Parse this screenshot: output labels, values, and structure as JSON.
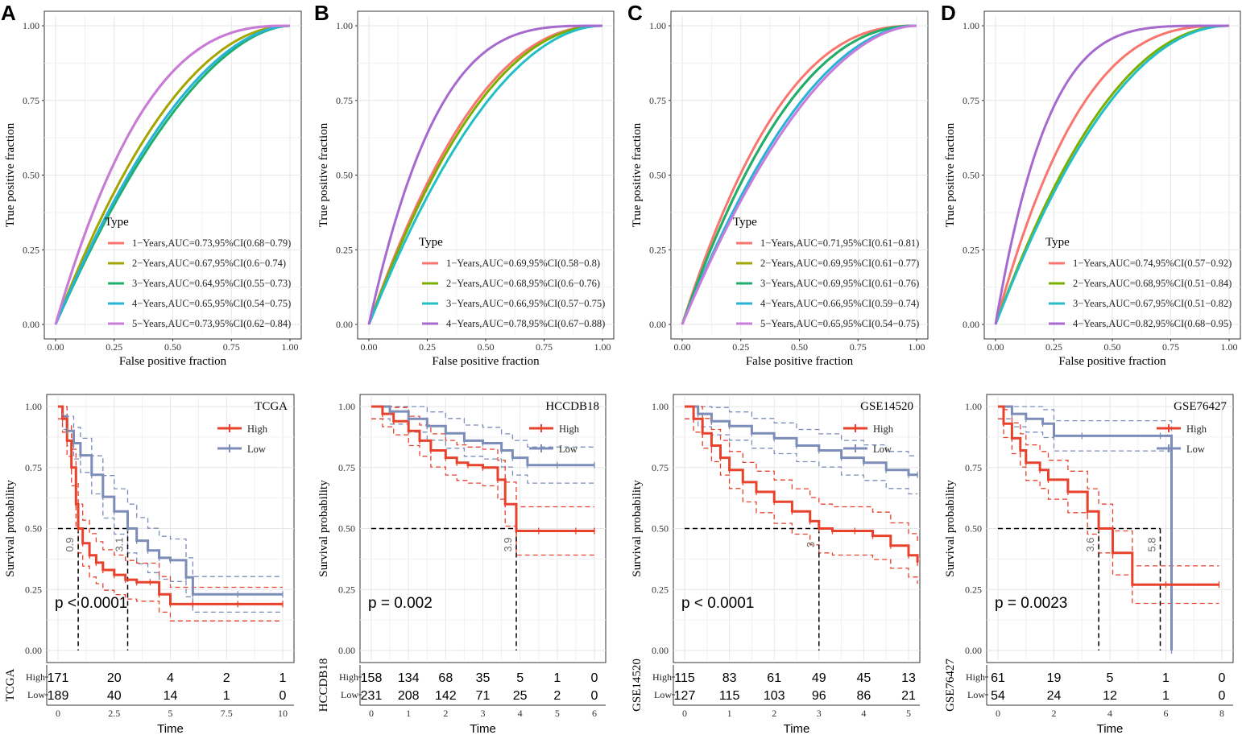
{
  "colors": {
    "roc": [
      "#F8766D",
      "#A3A500",
      "#1FAE6B",
      "#26B3D8",
      "#C77CDA"
    ],
    "roc_d": [
      "#F8766D",
      "#7CAE00",
      "#23BFC4",
      "#A66ACF"
    ],
    "high": "#E8412C",
    "low": "#7B8DB8"
  },
  "chart_data": [
    {
      "type": "line",
      "panel_label": "A",
      "xlabel": "False positive fraction",
      "ylabel": "True positive fraction",
      "xlim": [
        0,
        1
      ],
      "ylim": [
        0,
        1
      ],
      "x_ticks": [
        "0.00",
        "0.25",
        "0.50",
        "0.75",
        "1.00"
      ],
      "y_ticks": [
        "0.00",
        "0.25",
        "0.50",
        "0.75",
        "1.00"
      ],
      "legend_title": "Type",
      "series": [
        {
          "name": "1−Years,AUC=0.73,95%CI(0.68−0.79)",
          "auc": 0.73
        },
        {
          "name": "2−Years,AUC=0.67,95%CI(0.6−0.74)",
          "auc": 0.67
        },
        {
          "name": "3−Years,AUC=0.64,95%CI(0.55−0.73)",
          "auc": 0.64
        },
        {
          "name": "4−Years,AUC=0.65,95%CI(0.54−0.75)",
          "auc": 0.65
        },
        {
          "name": "5−Years,AUC=0.73,95%CI(0.62−0.84)",
          "auc": 0.73
        }
      ]
    },
    {
      "type": "line",
      "panel_label": "B",
      "xlabel": "False positive fraction",
      "ylabel": "True positive fraction",
      "xlim": [
        0,
        1
      ],
      "ylim": [
        0,
        1
      ],
      "x_ticks": [
        "0.00",
        "0.25",
        "0.50",
        "0.75",
        "1.00"
      ],
      "y_ticks": [
        "0.00",
        "0.25",
        "0.50",
        "0.75",
        "1.00"
      ],
      "legend_title": "Type",
      "series": [
        {
          "name": "1−Years,AUC=0.69,95%CI(0.58−0.8)",
          "auc": 0.69
        },
        {
          "name": "2−Years,AUC=0.68,95%CI(0.6−0.76)",
          "auc": 0.68
        },
        {
          "name": "3−Years,AUC=0.66,95%CI(0.57−0.75)",
          "auc": 0.66
        },
        {
          "name": "4−Years,AUC=0.78,95%CI(0.67−0.88)",
          "auc": 0.78
        }
      ]
    },
    {
      "type": "line",
      "panel_label": "C",
      "xlabel": "False positive fraction",
      "ylabel": "True positive fraction",
      "xlim": [
        0,
        1
      ],
      "ylim": [
        0,
        1
      ],
      "x_ticks": [
        "0.00",
        "0.25",
        "0.50",
        "0.75",
        "1.00"
      ],
      "y_ticks": [
        "0.00",
        "0.25",
        "0.50",
        "0.75",
        "1.00"
      ],
      "legend_title": "Type",
      "series": [
        {
          "name": "1−Years,AUC=0.71,95%CI(0.61−0.81)",
          "auc": 0.71
        },
        {
          "name": "2−Years,AUC=0.69,95%CI(0.61−0.77)",
          "auc": 0.69
        },
        {
          "name": "3−Years,AUC=0.69,95%CI(0.61−0.76)",
          "auc": 0.69
        },
        {
          "name": "4−Years,AUC=0.66,95%CI(0.59−0.74)",
          "auc": 0.66
        },
        {
          "name": "5−Years,AUC=0.65,95%CI(0.54−0.75)",
          "auc": 0.65
        }
      ]
    },
    {
      "type": "line",
      "panel_label": "D",
      "xlabel": "False positive fraction",
      "ylabel": "True positive fraction",
      "xlim": [
        0,
        1
      ],
      "ylim": [
        0,
        1
      ],
      "x_ticks": [
        "0.00",
        "0.25",
        "0.50",
        "0.75",
        "1.00"
      ],
      "y_ticks": [
        "0.00",
        "0.25",
        "0.50",
        "0.75",
        "1.00"
      ],
      "legend_title": "Type",
      "series": [
        {
          "name": "1−Years,AUC=0.74,95%CI(0.57−0.92)",
          "auc": 0.74
        },
        {
          "name": "2−Years,AUC=0.68,95%CI(0.51−0.84)",
          "auc": 0.68
        },
        {
          "name": "3−Years,AUC=0.67,95%CI(0.51−0.82)",
          "auc": 0.67
        },
        {
          "name": "4−Years,AUC=0.82,95%CI(0.68−0.95)",
          "auc": 0.82
        }
      ]
    },
    {
      "type": "line",
      "subtype": "kaplan-meier",
      "title": "TCGA",
      "xlabel": "Time",
      "ylabel": "Survival probability",
      "xlim": [
        0,
        10
      ],
      "ylim": [
        0,
        1
      ],
      "x_ticks": [
        "0",
        "2.5",
        "5",
        "7.5",
        "10"
      ],
      "y_ticks": [
        "0.00",
        "0.25",
        "0.50",
        "0.75",
        "1.00"
      ],
      "legend": [
        "High",
        "Low"
      ],
      "pvalue": "p < 0.0001",
      "median_labels": [
        "0.9",
        "3.1"
      ],
      "medians": [
        0.9,
        3.1
      ],
      "high": {
        "x": [
          0,
          0.2,
          0.4,
          0.6,
          0.8,
          0.9,
          1.1,
          1.4,
          1.7,
          2.0,
          2.5,
          3.0,
          3.5,
          4.1,
          4.5,
          5.0,
          6.0,
          8.0,
          10.0
        ],
        "y": [
          1,
          0.95,
          0.86,
          0.75,
          0.6,
          0.5,
          0.44,
          0.39,
          0.36,
          0.33,
          0.31,
          0.29,
          0.28,
          0.28,
          0.23,
          0.19,
          0.19,
          0.19,
          0.19
        ]
      },
      "low": {
        "x": [
          0,
          0.2,
          0.4,
          0.7,
          1.0,
          1.5,
          2.0,
          2.5,
          3.1,
          3.5,
          4.0,
          4.5,
          5.0,
          5.7,
          6.0,
          8.0,
          10.0
        ],
        "y": [
          1,
          0.96,
          0.9,
          0.85,
          0.8,
          0.72,
          0.63,
          0.57,
          0.5,
          0.45,
          0.41,
          0.38,
          0.37,
          0.3,
          0.23,
          0.23,
          0.23
        ]
      },
      "risk_table": {
        "label": "TCGA",
        "times": [
          "0",
          "2.5",
          "5",
          "7.5",
          "10"
        ],
        "High": [
          "171",
          "20",
          "4",
          "2",
          "1"
        ],
        "Low": [
          "189",
          "40",
          "14",
          "1",
          "0"
        ]
      }
    },
    {
      "type": "line",
      "subtype": "kaplan-meier",
      "title": "HCCDB18",
      "xlabel": "Time",
      "ylabel": "Survival probability",
      "xlim": [
        0,
        6
      ],
      "ylim": [
        0,
        1
      ],
      "x_ticks": [
        "0",
        "1",
        "2",
        "3",
        "4",
        "5",
        "6"
      ],
      "y_ticks": [
        "0.00",
        "0.25",
        "0.50",
        "0.75",
        "1.00"
      ],
      "legend": [
        "High",
        "Low"
      ],
      "pvalue": "p = 0.002",
      "median_labels": [
        "3.9"
      ],
      "medians": [
        3.9
      ],
      "high": {
        "x": [
          0,
          0.3,
          0.6,
          1.0,
          1.3,
          1.6,
          2.0,
          2.3,
          2.6,
          3.0,
          3.4,
          3.6,
          3.9,
          4.5,
          5.5,
          6.0
        ],
        "y": [
          1,
          0.97,
          0.94,
          0.9,
          0.86,
          0.82,
          0.79,
          0.77,
          0.76,
          0.75,
          0.7,
          0.6,
          0.49,
          0.49,
          0.49,
          0.49
        ]
      },
      "low": {
        "x": [
          0,
          0.5,
          1.0,
          1.5,
          2.0,
          2.5,
          3.0,
          3.5,
          3.8,
          4.2,
          5.0,
          6.0
        ],
        "y": [
          1,
          0.98,
          0.95,
          0.92,
          0.89,
          0.86,
          0.85,
          0.82,
          0.79,
          0.76,
          0.76,
          0.76
        ]
      },
      "risk_table": {
        "label": "HCCDB18",
        "times": [
          "0",
          "1",
          "2",
          "3",
          "4",
          "5",
          "6"
        ],
        "High": [
          "158",
          "134",
          "68",
          "35",
          "5",
          "1",
          "0"
        ],
        "Low": [
          "231",
          "208",
          "142",
          "71",
          "25",
          "2",
          "0"
        ]
      }
    },
    {
      "type": "line",
      "subtype": "kaplan-meier",
      "title": "GSE14520",
      "xlabel": "Time",
      "ylabel": "Survival probability",
      "xlim": [
        0,
        5
      ],
      "ylim": [
        0,
        1
      ],
      "x_ticks": [
        "0",
        "1",
        "2",
        "3",
        "4",
        "5"
      ],
      "y_ticks": [
        "0.00",
        "0.25",
        "0.50",
        "0.75",
        "1.00"
      ],
      "legend": [
        "High",
        "Low"
      ],
      "pvalue": "p < 0.0001",
      "median_labels": [
        "3"
      ],
      "medians": [
        3.0
      ],
      "high": {
        "x": [
          0,
          0.2,
          0.4,
          0.6,
          0.8,
          1.0,
          1.3,
          1.6,
          2.0,
          2.4,
          2.8,
          3.0,
          3.3,
          3.8,
          4.2,
          4.6,
          5.0,
          5.2
        ],
        "y": [
          1,
          0.95,
          0.89,
          0.84,
          0.79,
          0.74,
          0.69,
          0.65,
          0.61,
          0.57,
          0.53,
          0.5,
          0.49,
          0.49,
          0.47,
          0.43,
          0.39,
          0.36
        ]
      },
      "low": {
        "x": [
          0,
          0.3,
          0.6,
          1.0,
          1.5,
          2.0,
          2.5,
          3.0,
          3.5,
          4.0,
          4.5,
          5.0,
          5.2
        ],
        "y": [
          1,
          0.97,
          0.94,
          0.92,
          0.89,
          0.87,
          0.84,
          0.82,
          0.79,
          0.77,
          0.74,
          0.72,
          0.72
        ]
      },
      "risk_table": {
        "label": "GSE14520",
        "times": [
          "0",
          "1",
          "2",
          "3",
          "4",
          "5"
        ],
        "High": [
          "115",
          "83",
          "61",
          "49",
          "45",
          "13"
        ],
        "Low": [
          "127",
          "115",
          "103",
          "96",
          "86",
          "21"
        ]
      }
    },
    {
      "type": "line",
      "subtype": "kaplan-meier",
      "title": "GSE76427",
      "xlabel": "Time",
      "ylabel": "Survival probability",
      "xlim": [
        0,
        8
      ],
      "ylim": [
        0,
        1
      ],
      "x_ticks": [
        "0",
        "2",
        "4",
        "6",
        "8"
      ],
      "y_ticks": [
        "0.00",
        "0.25",
        "0.50",
        "0.75",
        "1.00"
      ],
      "legend": [
        "High",
        "Low"
      ],
      "pvalue": "p = 0.0023",
      "median_labels": [
        "3.6",
        "5.8"
      ],
      "medians": [
        3.6,
        5.8
      ],
      "high": {
        "x": [
          0,
          0.2,
          0.5,
          0.8,
          1.0,
          1.5,
          1.8,
          2.5,
          3.2,
          3.6,
          4.1,
          4.8,
          6.0,
          7.9
        ],
        "y": [
          1,
          0.93,
          0.87,
          0.82,
          0.77,
          0.74,
          0.7,
          0.65,
          0.57,
          0.5,
          0.4,
          0.27,
          0.27,
          0.27
        ]
      },
      "low": {
        "x": [
          0,
          0.5,
          1.0,
          1.6,
          2.0,
          3.0,
          5.8,
          6.2
        ],
        "y": [
          1,
          0.97,
          0.95,
          0.93,
          0.88,
          0.88,
          0.88,
          0.0
        ]
      },
      "risk_table": {
        "label": "GSE76427",
        "times": [
          "0",
          "2",
          "4",
          "6",
          "8"
        ],
        "High": [
          "61",
          "19",
          "5",
          "1",
          "0"
        ],
        "Low": [
          "54",
          "24",
          "12",
          "1",
          "0"
        ]
      }
    }
  ]
}
